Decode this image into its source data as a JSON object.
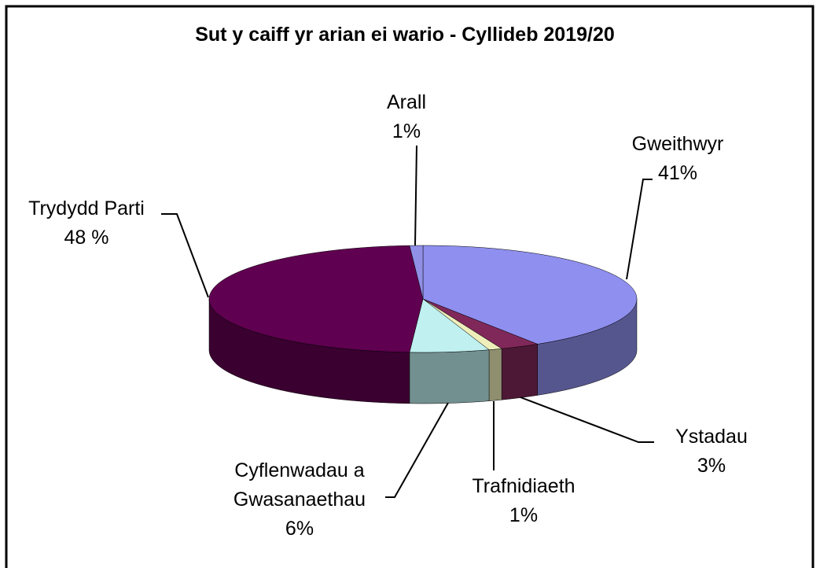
{
  "chart_data": {
    "type": "pie3d",
    "title": "Sut y caiff yr arian ei wario - Cyllideb 2019/20",
    "categories": [
      "Gweithwyr",
      "Ystadau",
      "Trafnidiaeth",
      "Cyflenwadau a Gwasanaethau",
      "Trydydd Parti",
      "Arall"
    ],
    "values": [
      41,
      3,
      1,
      6,
      48,
      1
    ],
    "value_labels": [
      "41%",
      "3%",
      "1%",
      "6%",
      "48 %",
      "1%"
    ],
    "colors": [
      "#8f8fef",
      "#80285a",
      "#eeeebb",
      "#c0f0f0",
      "#600050",
      "#9090e6"
    ]
  }
}
